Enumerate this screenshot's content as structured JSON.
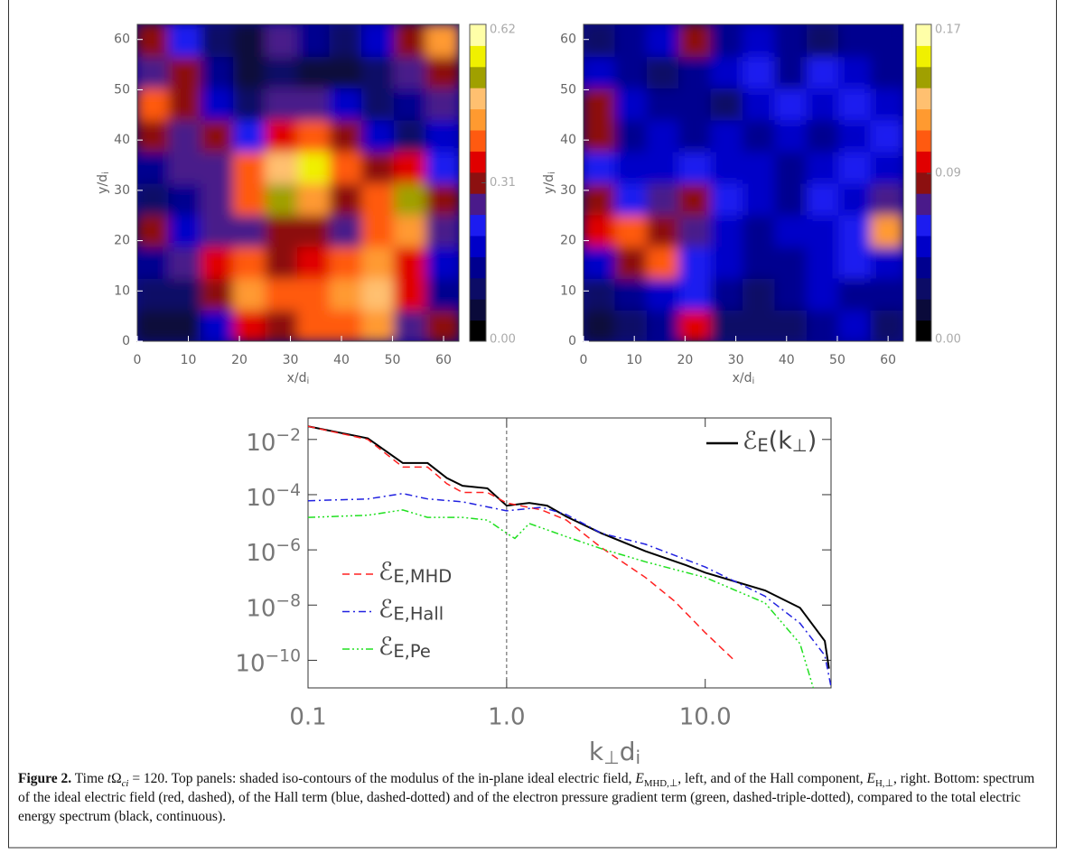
{
  "chart_data": [
    {
      "type": "heatmap",
      "xlabel": [
        {
          "text": "x/d"
        },
        {
          "text": "i",
          "sub": true
        }
      ],
      "ylabel": [
        {
          "text": "y/d"
        },
        {
          "text": "i",
          "sub": true
        }
      ],
      "xlim": [
        0,
        63
      ],
      "ylim": [
        0,
        63
      ],
      "xticks": [
        0,
        10,
        20,
        30,
        40,
        50,
        60
      ],
      "yticks": [
        0,
        10,
        20,
        30,
        40,
        50,
        60
      ],
      "zlim": [
        0,
        0.62
      ],
      "cticks": [
        {
          "value": 0,
          "label": "0.00"
        },
        0.31,
        0.62
      ],
      "colormap": [
        "#000000",
        "#0a0a3a",
        "#0c0c66",
        "#00008f",
        "#0000c8",
        "#1c1cf0",
        "#4a1a8a",
        "#8c1010",
        "#e00000",
        "#ff5a10",
        "#ff9a30",
        "#ffc070",
        "#a0a000",
        "#f0f000",
        "#ffffa8"
      ],
      "z": [
        [
          0.05,
          0.08,
          0.2,
          0.35,
          0.32,
          0.38,
          0.4,
          0.45,
          0.25,
          0.3
        ],
        [
          0.1,
          0.12,
          0.3,
          0.42,
          0.38,
          0.4,
          0.45,
          0.48,
          0.35,
          0.15
        ],
        [
          0.15,
          0.25,
          0.35,
          0.38,
          0.3,
          0.35,
          0.4,
          0.45,
          0.35,
          0.2
        ],
        [
          0.3,
          0.2,
          0.28,
          0.25,
          0.32,
          0.3,
          0.28,
          0.4,
          0.42,
          0.28
        ],
        [
          0.1,
          0.15,
          0.25,
          0.4,
          0.5,
          0.45,
          0.32,
          0.4,
          0.5,
          0.3
        ],
        [
          0.15,
          0.28,
          0.25,
          0.38,
          0.48,
          0.55,
          0.4,
          0.3,
          0.35,
          0.22
        ],
        [
          0.33,
          0.28,
          0.3,
          0.22,
          0.35,
          0.4,
          0.3,
          0.2,
          0.12,
          0.2
        ],
        [
          0.4,
          0.32,
          0.2,
          0.12,
          0.25,
          0.28,
          0.2,
          0.1,
          0.15,
          0.25
        ],
        [
          0.25,
          0.32,
          0.15,
          0.08,
          0.12,
          0.08,
          0.05,
          0.12,
          0.28,
          0.3
        ],
        [
          0.3,
          0.22,
          0.1,
          0.08,
          0.25,
          0.15,
          0.1,
          0.2,
          0.3,
          0.45
        ]
      ]
    },
    {
      "type": "heatmap",
      "xlabel": [
        {
          "text": "x/d"
        },
        {
          "text": "i",
          "sub": true
        }
      ],
      "ylabel": [
        {
          "text": "y/d"
        },
        {
          "text": "i",
          "sub": true
        }
      ],
      "xlim": [
        0,
        63
      ],
      "ylim": [
        0,
        63
      ],
      "xticks": [
        0,
        10,
        20,
        30,
        40,
        50,
        60
      ],
      "yticks": [
        0,
        10,
        20,
        30,
        40,
        50,
        60
      ],
      "zlim": [
        0,
        0.17
      ],
      "cticks": [
        {
          "value": 0,
          "label": "0.00"
        },
        0.09,
        0.17
      ],
      "colormap": [
        "#000000",
        "#0a0a3a",
        "#0c0c66",
        "#00008f",
        "#0000c8",
        "#1c1cf0",
        "#4a1a8a",
        "#8c1010",
        "#e00000",
        "#ff5a10",
        "#ff9a30",
        "#ffc070",
        "#a0a000",
        "#f0f000",
        "#ffffa8"
      ],
      "z": [
        [
          0.02,
          0.03,
          0.04,
          0.1,
          0.03,
          0.03,
          0.03,
          0.04,
          0.05,
          0.03
        ],
        [
          0.03,
          0.04,
          0.05,
          0.06,
          0.04,
          0.03,
          0.04,
          0.05,
          0.04,
          0.04
        ],
        [
          0.05,
          0.08,
          0.11,
          0.06,
          0.05,
          0.04,
          0.04,
          0.05,
          0.06,
          0.05
        ],
        [
          0.1,
          0.11,
          0.08,
          0.07,
          0.05,
          0.04,
          0.05,
          0.05,
          0.06,
          0.12
        ],
        [
          0.08,
          0.06,
          0.07,
          0.09,
          0.06,
          0.05,
          0.04,
          0.06,
          0.05,
          0.07
        ],
        [
          0.06,
          0.05,
          0.05,
          0.06,
          0.05,
          0.05,
          0.04,
          0.05,
          0.06,
          0.05
        ],
        [
          0.09,
          0.04,
          0.05,
          0.04,
          0.05,
          0.04,
          0.05,
          0.04,
          0.05,
          0.06
        ],
        [
          0.08,
          0.05,
          0.04,
          0.04,
          0.03,
          0.05,
          0.06,
          0.05,
          0.06,
          0.05
        ],
        [
          0.05,
          0.04,
          0.03,
          0.04,
          0.05,
          0.06,
          0.04,
          0.06,
          0.05,
          0.04
        ],
        [
          0.03,
          0.04,
          0.05,
          0.08,
          0.04,
          0.05,
          0.04,
          0.03,
          0.04,
          0.04
        ]
      ]
    },
    {
      "type": "line",
      "xscale": "log",
      "yscale": "log",
      "xlabel": [
        {
          "text": "k"
        },
        {
          "text": "⊥",
          "sub": true
        },
        {
          "text": "d"
        },
        {
          "text": "i",
          "sub": true
        }
      ],
      "xlim": [
        0.1,
        43
      ],
      "ylim": [
        1e-11,
        0.06
      ],
      "xticks": [
        0.1,
        {
          "value": 1,
          "label": "1.0"
        },
        {
          "value": 10,
          "label": "10.0"
        }
      ],
      "yticks": [
        {
          "value": 0.01,
          "label": [
            {
              "text": "10"
            },
            {
              "text": "−2",
              "sup": true
            }
          ]
        },
        {
          "value": 0.0001,
          "label": [
            {
              "text": "10"
            },
            {
              "text": "−4",
              "sup": true
            }
          ]
        },
        {
          "value": 1e-06,
          "label": [
            {
              "text": "10"
            },
            {
              "text": "−6",
              "sup": true
            }
          ]
        },
        {
          "value": 1e-08,
          "label": [
            {
              "text": "10"
            },
            {
              "text": "−8",
              "sup": true
            }
          ]
        },
        {
          "value": 1e-10,
          "label": [
            {
              "text": "10"
            },
            {
              "text": "−10",
              "sup": true
            }
          ]
        }
      ],
      "vline": 1,
      "series": [
        {
          "name": [
            {
              "text": "ℰ"
            },
            {
              "text": "E",
              "sub": true
            },
            {
              "text": "(k"
            },
            {
              "text": "⊥",
              "sub": true
            },
            {
              "text": ")"
            }
          ],
          "color": "#000000",
          "linestyle": "solid",
          "legend": "upper right",
          "x": [
            0.1,
            0.2,
            0.3,
            0.4,
            0.5,
            0.6,
            0.8,
            1.0,
            1.3,
            1.6,
            2,
            3,
            5,
            8,
            10,
            20,
            30,
            40,
            42
          ],
          "values": [
            0.03,
            0.011,
            0.0014,
            0.0014,
            0.0004,
            0.00021,
            0.00017,
            4e-05,
            5e-05,
            4e-05,
            1.6e-05,
            4e-06,
            9e-07,
            2.8e-07,
            1.5e-07,
            3.4e-08,
            8e-09,
            5e-10,
            5e-11
          ]
        },
        {
          "name": [
            {
              "text": "ℰ"
            },
            {
              "text": "E,MHD",
              "sub": true
            }
          ],
          "color": "#ff2020",
          "linestyle": "dashed",
          "legend": "lower left",
          "x": [
            0.1,
            0.2,
            0.3,
            0.4,
            0.5,
            0.6,
            0.8,
            1.0,
            1.5,
            2,
            3,
            5,
            7,
            10,
            14
          ],
          "values": [
            0.03,
            0.01,
            0.001,
            0.001,
            0.00025,
            0.00012,
            0.00012,
            5e-05,
            2.8e-05,
            1.2e-05,
            1.2e-06,
            1e-07,
            1.4e-08,
            1e-09,
            1e-10
          ]
        },
        {
          "name": [
            {
              "text": "ℰ"
            },
            {
              "text": "E,Hall",
              "sub": true
            }
          ],
          "color": "#2020e0",
          "linestyle": "dashdot",
          "legend": "lower left",
          "x": [
            0.1,
            0.2,
            0.3,
            0.4,
            0.6,
            1.0,
            1.5,
            2,
            3,
            5,
            10,
            20,
            30,
            40,
            43
          ],
          "values": [
            6e-05,
            7e-05,
            0.00011,
            7e-05,
            5.5e-05,
            2.6e-05,
            3.5e-05,
            1.9e-05,
            4e-06,
            1.6e-06,
            2.4e-07,
            2.1e-08,
            2.2e-09,
            1.5e-10,
            1.1e-11
          ]
        },
        {
          "name": [
            {
              "text": "ℰ"
            },
            {
              "text": "E,Pe",
              "sub": true
            }
          ],
          "color": "#20e020",
          "linestyle": "dashdotdotdot",
          "legend": "lower left",
          "x": [
            0.1,
            0.2,
            0.3,
            0.4,
            0.6,
            0.8,
            1.0,
            1.1,
            1.3,
            2,
            3,
            5,
            10,
            20,
            30,
            35
          ],
          "values": [
            1.5e-05,
            1.8e-05,
            2.8e-05,
            1.5e-05,
            1.5e-05,
            1.2e-05,
            4e-06,
            2.6e-06,
            9e-06,
            3e-06,
            1.1e-06,
            3.7e-07,
            1e-07,
            1.2e-08,
            4e-10,
            1e-11
          ]
        }
      ]
    }
  ],
  "caption": [
    {
      "text": "Figure 2.",
      "style": "b"
    },
    {
      "text": " Time "
    },
    {
      "text": "t",
      "style": "i"
    },
    {
      "text": "Ω"
    },
    {
      "text": "ci",
      "style": "isub"
    },
    {
      "text": " = 120. Top panels: shaded iso-contours of the modulus of the in-plane ideal electric field, "
    },
    {
      "text": "E",
      "style": "i"
    },
    {
      "text": "MHD,⊥",
      "style": "sub"
    },
    {
      "text": ", left, and of the Hall component, "
    },
    {
      "text": "E",
      "style": "i"
    },
    {
      "text": "H,⊥",
      "style": "sub"
    },
    {
      "text": ", right. Bottom: spectrum of the ideal electric field (red, dashed), of the Hall term (blue, dashed-dotted) and of the electron pressure gradient term (green, dashed-triple-dotted), compared to the total electric energy spectrum (black, continuous)."
    }
  ]
}
